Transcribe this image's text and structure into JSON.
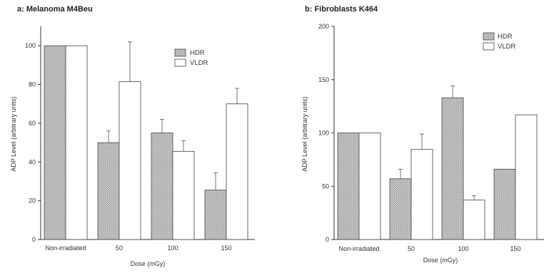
{
  "chart_data": [
    {
      "type": "bar",
      "title": "a: Melanoma M4Beu",
      "xlabel": "Dose (mGy)",
      "ylabel": "ADP Level (arbitrary units)",
      "ylim": [
        0,
        110
      ],
      "yticks": [
        0,
        20,
        40,
        60,
        80,
        100
      ],
      "categories": [
        "Non-irradiated",
        "50",
        "100",
        "150"
      ],
      "series": [
        {
          "name": "HDR",
          "color": "#b0b0b0",
          "pattern": "hatched-gray",
          "values": [
            100,
            50,
            55,
            25.5
          ],
          "errors": [
            null,
            6,
            7,
            9
          ]
        },
        {
          "name": "VLDR",
          "color": "#ffffff",
          "pattern": "none",
          "values": [
            100,
            81.5,
            45.5,
            70
          ],
          "errors": [
            null,
            20.5,
            5.5,
            8
          ]
        }
      ],
      "legend_position": "top-right"
    },
    {
      "type": "bar",
      "title": "b: Fibroblasts K464",
      "xlabel": "Dose (mGy)",
      "ylabel": "ADP Level (arbitrary units)",
      "ylim": [
        0,
        200
      ],
      "yticks": [
        0,
        50,
        100,
        150,
        200
      ],
      "categories": [
        "Non-irradiated",
        "50",
        "100",
        "150"
      ],
      "series": [
        {
          "name": "HDR",
          "color": "#b0b0b0",
          "pattern": "hatched-gray",
          "values": [
            100,
            57,
            133,
            66
          ],
          "errors": [
            null,
            9,
            11,
            null
          ]
        },
        {
          "name": "VLDR",
          "color": "#ffffff",
          "pattern": "none",
          "values": [
            100,
            84.5,
            37,
            117
          ],
          "errors": [
            null,
            14.5,
            4,
            null
          ]
        }
      ],
      "legend_position": "top-right"
    }
  ]
}
